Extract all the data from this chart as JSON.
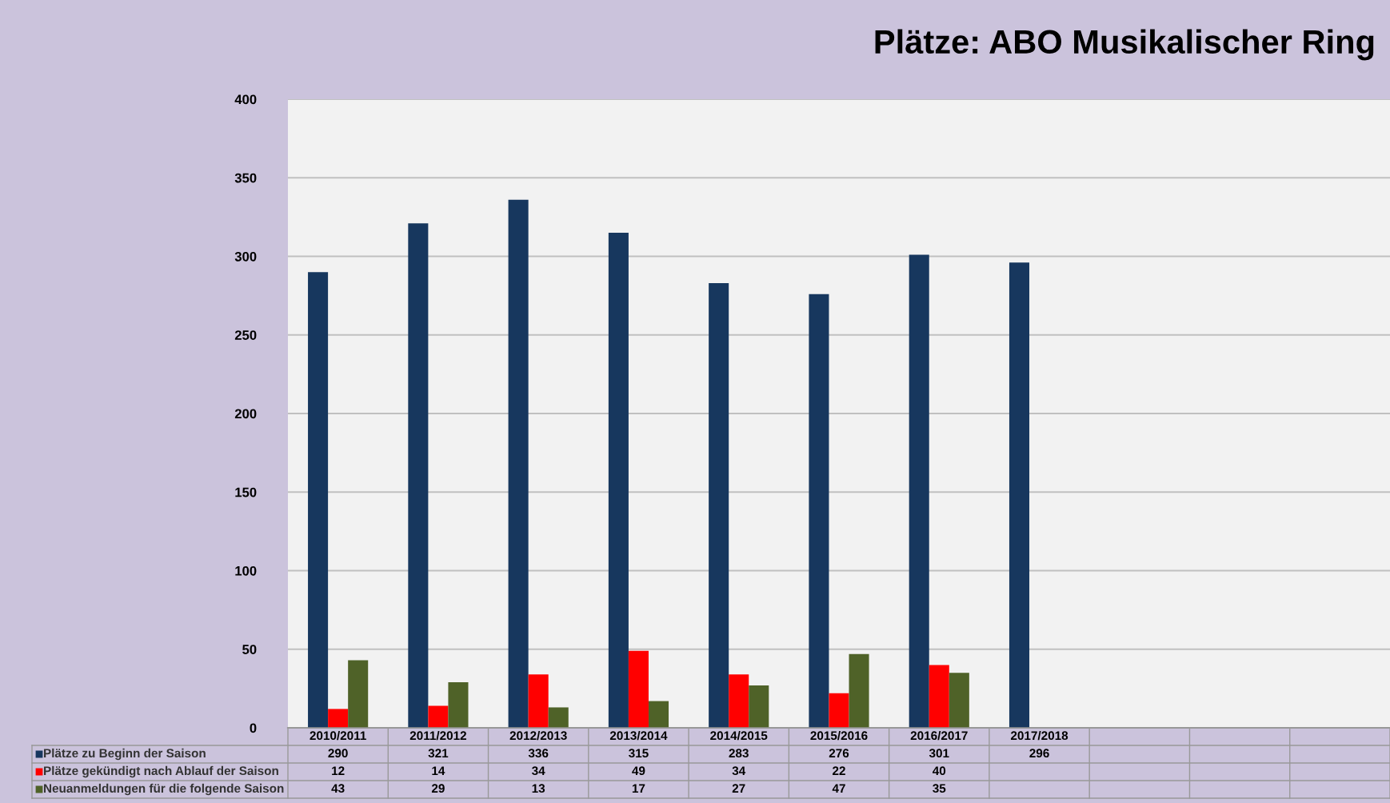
{
  "chart_data": {
    "type": "bar",
    "title": "Plätze: ABO Musikalischer Ring",
    "categories": [
      "2010/2011",
      "2011/2012",
      "2012/2013",
      "2013/2014",
      "2014/2015",
      "2015/2016",
      "2016/2017",
      "2017/2018",
      null,
      null,
      null
    ],
    "series": [
      {
        "name": "Plätze zu Beginn der Saison",
        "color": "#17375e",
        "values": [
          290,
          321,
          336,
          315,
          283,
          276,
          301,
          296,
          null,
          null,
          null
        ]
      },
      {
        "name": "Plätze gekündigt nach Ablauf der Saison",
        "color": "#ff0000",
        "values": [
          12,
          14,
          34,
          49,
          34,
          22,
          40,
          null,
          null,
          null,
          null
        ]
      },
      {
        "name": "Neuanmeldungen für die folgende Saison",
        "color": "#4f6228",
        "values": [
          43,
          29,
          13,
          17,
          27,
          47,
          35,
          null,
          null,
          null,
          null
        ]
      }
    ],
    "ylim": [
      0,
      400
    ],
    "yticks": [
      0,
      50,
      100,
      150,
      200,
      250,
      300,
      350,
      400
    ],
    "grid": "y",
    "data_labels": true,
    "legend": "bottom"
  }
}
